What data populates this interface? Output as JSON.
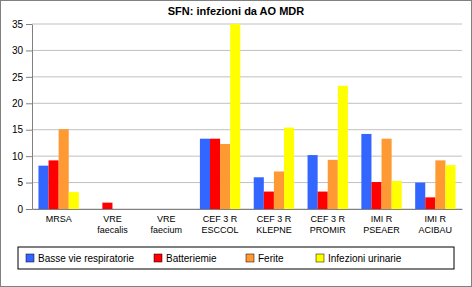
{
  "chart_data": {
    "type": "bar",
    "title": "SFN: infezioni da AO MDR",
    "categories": [
      "MRSA",
      "VRE faecalis",
      "VRE faecium",
      "CEF 3 R ESCCOL",
      "CEF 3 R KLEPNE",
      "CEF 3 R PROMIR",
      "IMI R PSEAER",
      "IMI R ACIBAU"
    ],
    "series": [
      {
        "name": "Basse vie respiratorie",
        "color": "#3366ff",
        "values": [
          8.2,
          0,
          0,
          13.3,
          6,
          10.2,
          14.2,
          5
        ]
      },
      {
        "name": "Batteriemie",
        "color": "#ff0000",
        "values": [
          9.2,
          1.2,
          0,
          13.3,
          3.3,
          3.3,
          5.1,
          2.2
        ]
      },
      {
        "name": "Ferite",
        "color": "#ff9933",
        "values": [
          15.1,
          0,
          0,
          12.3,
          7.1,
          9.3,
          13.3,
          9.2
        ]
      },
      {
        "name": "Infezioni urinarie",
        "color": "#ffff00",
        "values": [
          3.2,
          0,
          0,
          35,
          15.4,
          23.3,
          5.3,
          8.3
        ]
      }
    ],
    "ylim": [
      0,
      35
    ],
    "yticks": [
      0,
      5,
      10,
      15,
      20,
      25,
      30,
      35
    ],
    "grid": true,
    "legend": "bottom"
  }
}
